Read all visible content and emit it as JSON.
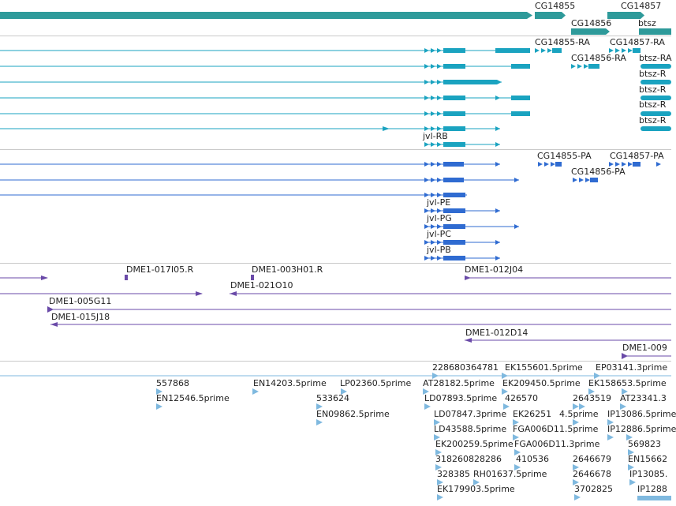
{
  "colors": {
    "gene": "#2e9a9a",
    "transcript": "#1aa3c0",
    "protein": "#2f6bd1",
    "clone": "#6a4aa8",
    "est": "#7fb9df",
    "divider": "#c9c9c9"
  },
  "tracks": {
    "genes": {
      "labels": {
        "cg14855": "CG14855",
        "cg14857": "CG14857",
        "cg14856": "CG14856",
        "btsz": "btsz"
      }
    },
    "transcripts": {
      "labels": {
        "cg14855_ra": "CG14855-RA",
        "cg14857_ra": "CG14857-RA",
        "cg14856_ra": "CG14856-RA",
        "btsz_r1": "btsz-RA",
        "btsz_r2": "btsz-R",
        "btsz_r3": "btsz-R",
        "btsz_r4": "btsz-R",
        "btsz_r5": "btsz-R",
        "jvl_rb": "jvl-RB"
      }
    },
    "proteins": {
      "labels": {
        "cg14855_pa": "CG14855-PA",
        "cg14857_pa": "CG14857-PA",
        "cg14856_pa": "CG14856-PA",
        "jvl_pe": "jvl-PE",
        "jvl_pg": "jvl-PG",
        "jvl_pc": "jvl-PC",
        "jvl_pb": "jvl-PB"
      }
    },
    "clones": {
      "labels": {
        "c017i05": "DME1-017I05.R",
        "c003h01": "DME1-003H01.R",
        "c012j04": "DME1-012J04",
        "c021o10": "DME1-021O10",
        "c005g11": "DME1-005G11",
        "c015j18": "DME1-015J18",
        "c012d14": "DME1-012D14",
        "c009": "DME1-009"
      }
    },
    "ests": {
      "labels": {
        "e01": "228680364781",
        "e02": "EK155601.5prime",
        "e03": "EP03141.3prime",
        "e04": "557868",
        "e05": "EN14203.5prime",
        "e06": "LP02360.5prime",
        "e07": "AT28182.5prime",
        "e08": "EK209450.5prime",
        "e09": "EK158653.5prime",
        "e10": "EN12546.5prime",
        "e11": "533624",
        "e12": "LD07893.5prime",
        "e13": "426570",
        "e14": "2643519",
        "e15": "AT23341.3",
        "e16": "EN09862.5prime",
        "e17": "LD07847.3prime",
        "e18": "EK26251",
        "e19": "4.5prime",
        "e20": "IP13086.5prime",
        "e21": "LD43588.5prime",
        "e22": "FGA006D11.5prime",
        "e23": "IP12886.5prime",
        "e24": "EK200259.5prime",
        "e25": "FGA006D11.3prime",
        "e26": "569823",
        "e27": "318260828286",
        "e28": "410536",
        "e29": "2646679",
        "e30": "EN15662",
        "e31": "328385",
        "e32": "RH01637.5prime",
        "e33": "2646678",
        "e34": "IP13085.",
        "e35": "EK179903.5prime",
        "e36": "3702825",
        "e37": "IP1288"
      }
    }
  }
}
